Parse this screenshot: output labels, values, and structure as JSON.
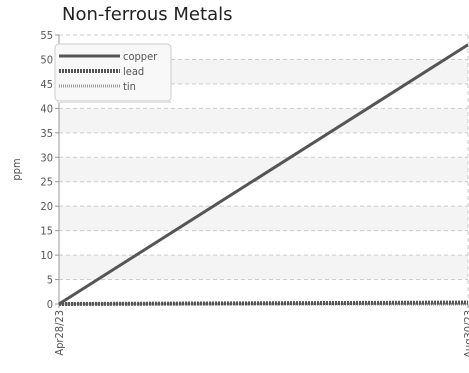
{
  "chart_data": {
    "type": "line",
    "title": "Non-ferrous Metals",
    "xlabel": "",
    "ylabel": "ppm",
    "x_ticks": [
      "Apr28/23",
      "Aug30/23"
    ],
    "ylim": [
      0,
      55
    ],
    "y_ticks": [
      0,
      5,
      10,
      15,
      20,
      25,
      30,
      35,
      40,
      45,
      50,
      55
    ],
    "grid": true,
    "legend_position": "top-left",
    "series": [
      {
        "name": "copper",
        "color": "#555555",
        "style": "solid",
        "points": [
          {
            "x": "Apr28/23",
            "y": 0
          },
          {
            "x": "Aug30/23",
            "y": 53
          }
        ]
      },
      {
        "name": "lead",
        "color": "#555555",
        "style": "dotted-thick",
        "points": [
          {
            "x": "Apr28/23",
            "y": 0
          },
          {
            "x": "Aug30/23",
            "y": 0.3
          }
        ]
      },
      {
        "name": "tin",
        "color": "#999999",
        "style": "dotted",
        "points": [
          {
            "x": "Apr28/23",
            "y": 0
          },
          {
            "x": "Aug30/23",
            "y": 0
          }
        ]
      }
    ]
  }
}
